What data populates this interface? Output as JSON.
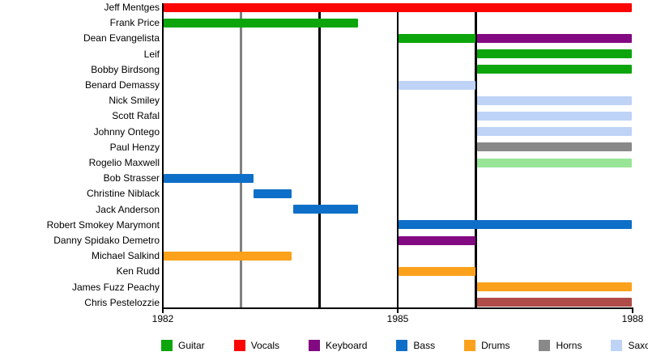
{
  "colors": {
    "guitar": "#0CA50C",
    "vocals": "#FB0505",
    "keyboard": "#820982",
    "bass": "#0E6FC8",
    "drums": "#FBA11B",
    "horns": "#898989",
    "saxophone": "#BED3F6",
    "guitar_light": "#98E598",
    "vocals_muted": "#AF4C48",
    "event_line_gray": "#808080",
    "event_line_black": "#000000",
    "axis": "#000000"
  },
  "legend": {
    "items": [
      {
        "label": "Guitar",
        "color_key": "guitar"
      },
      {
        "label": "Vocals",
        "color_key": "vocals"
      },
      {
        "label": "Keyboard",
        "color_key": "keyboard"
      },
      {
        "label": "Bass",
        "color_key": "bass"
      },
      {
        "label": "Drums",
        "color_key": "drums"
      },
      {
        "label": "Horns",
        "color_key": "horns"
      },
      {
        "label": "Saxophone",
        "color_key": "saxophone"
      }
    ]
  },
  "chart_data": {
    "type": "timeline-gantt",
    "title": "",
    "x_axis": {
      "min": 1982,
      "max": 1988,
      "ticks": [
        {
          "year": 1982,
          "label": "1982"
        },
        {
          "year": 1985,
          "label": "1985"
        },
        {
          "year": 1988,
          "label": "1988"
        }
      ]
    },
    "event_lines": [
      {
        "year": 1983,
        "color_key": "event_line_gray"
      },
      {
        "year": 1984,
        "color_key": "event_line_black"
      },
      {
        "year": 1985,
        "color_key": "event_line_black"
      },
      {
        "year": 1986,
        "color_key": "event_line_black"
      }
    ],
    "members": [
      {
        "name": "Jeff Mentges",
        "segments": [
          {
            "start": 1982,
            "end": 1988,
            "role": "vocals"
          }
        ]
      },
      {
        "name": "Frank Price",
        "segments": [
          {
            "start": 1982,
            "end": 1984.5,
            "role": "guitar"
          }
        ]
      },
      {
        "name": "Dean Evangelista",
        "segments": [
          {
            "start": 1985,
            "end": 1986,
            "role": "guitar"
          },
          {
            "start": 1986,
            "end": 1988,
            "role": "keyboard"
          }
        ]
      },
      {
        "name": "Leif",
        "segments": [
          {
            "start": 1986,
            "end": 1988,
            "role": "guitar"
          }
        ]
      },
      {
        "name": "Bobby Birdsong",
        "segments": [
          {
            "start": 1986,
            "end": 1988,
            "role": "guitar"
          }
        ]
      },
      {
        "name": "Benard Demassy",
        "segments": [
          {
            "start": 1985,
            "end": 1986,
            "role": "saxophone"
          }
        ]
      },
      {
        "name": "Nick Smiley",
        "segments": [
          {
            "start": 1986,
            "end": 1988,
            "role": "saxophone"
          }
        ]
      },
      {
        "name": "Scott Rafal",
        "segments": [
          {
            "start": 1986,
            "end": 1988,
            "role": "saxophone"
          }
        ]
      },
      {
        "name": "Johnny Ontego",
        "segments": [
          {
            "start": 1986,
            "end": 1988,
            "role": "saxophone"
          }
        ]
      },
      {
        "name": "Paul Henzy",
        "segments": [
          {
            "start": 1986,
            "end": 1988,
            "role": "horns"
          }
        ]
      },
      {
        "name": "Rogelio Maxwell",
        "segments": [
          {
            "start": 1986,
            "end": 1988,
            "role": "guitar_light"
          }
        ]
      },
      {
        "name": "Bob Strasser",
        "segments": [
          {
            "start": 1982,
            "end": 1983.17,
            "role": "bass"
          }
        ]
      },
      {
        "name": "Christine Niblack",
        "segments": [
          {
            "start": 1983.15,
            "end": 1983.66,
            "role": "bass"
          }
        ]
      },
      {
        "name": "Jack Anderson",
        "segments": [
          {
            "start": 1983.66,
            "end": 1984.5,
            "role": "bass"
          }
        ]
      },
      {
        "name": "Robert Smokey Marymont",
        "segments": [
          {
            "start": 1985,
            "end": 1988,
            "role": "bass"
          }
        ]
      },
      {
        "name": "Danny Spidako Demetro",
        "segments": [
          {
            "start": 1985,
            "end": 1986,
            "role": "keyboard"
          }
        ]
      },
      {
        "name": "Michael Salkind",
        "segments": [
          {
            "start": 1982,
            "end": 1983.66,
            "role": "drums"
          }
        ]
      },
      {
        "name": "Ken Rudd",
        "segments": [
          {
            "start": 1985,
            "end": 1986,
            "role": "drums"
          }
        ]
      },
      {
        "name": "James Fuzz Peachy",
        "segments": [
          {
            "start": 1986,
            "end": 1988,
            "role": "drums"
          }
        ]
      },
      {
        "name": "Chris Pestelozzie",
        "segments": [
          {
            "start": 1986,
            "end": 1988,
            "role": "vocals_muted"
          }
        ]
      }
    ]
  }
}
